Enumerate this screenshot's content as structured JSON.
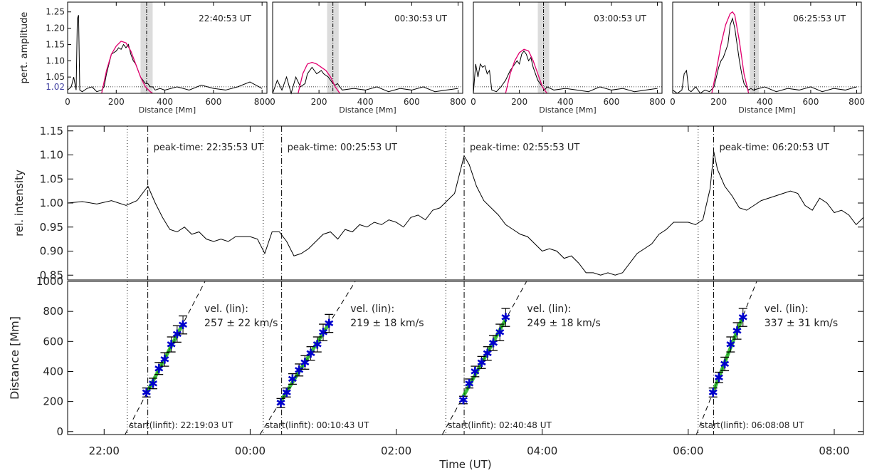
{
  "chart_data": [
    {
      "type": "line",
      "panel": "profile-1",
      "ylabel": "pert. amplitude",
      "xlabel": "Distance [Mm]",
      "xlim": [
        0,
        820
      ],
      "ylim": [
        1.0,
        1.28
      ],
      "xticks": [
        0,
        200,
        400,
        600,
        800
      ],
      "yticks": [
        1.05,
        1.1,
        1.15,
        1.2,
        1.25
      ],
      "threshold_label": "1.02",
      "threshold": 1.02,
      "timestamp": "22:40:53 UT",
      "front_position": 325,
      "front_band": [
        300,
        350
      ],
      "series": [
        {
          "color": "#000000",
          "x": [
            0,
            15,
            25,
            35,
            40,
            45,
            50,
            60,
            80,
            100,
            120,
            140,
            150,
            160,
            170,
            180,
            190,
            200,
            210,
            220,
            230,
            240,
            250,
            260,
            270,
            280,
            290,
            300,
            310,
            320,
            330,
            340,
            350,
            360,
            380,
            400,
            450,
            500,
            550,
            600,
            650,
            700,
            750,
            800
          ],
          "y": [
            1.01,
            1.02,
            1.05,
            1.01,
            1.23,
            1.24,
            1.01,
            1.005,
            1.015,
            1.02,
            1.005,
            1.01,
            1.02,
            1.06,
            1.09,
            1.12,
            1.125,
            1.13,
            1.14,
            1.135,
            1.15,
            1.14,
            1.15,
            1.12,
            1.1,
            1.09,
            1.07,
            1.05,
            1.04,
            1.03,
            1.03,
            1.02,
            1.02,
            1.01,
            1.015,
            1.01,
            1.02,
            1.01,
            1.025,
            1.015,
            1.01,
            1.02,
            1.035,
            1.015
          ]
        },
        {
          "color": "#e2006f",
          "x": [
            140,
            160,
            180,
            200,
            220,
            240,
            260,
            280,
            300,
            320,
            340,
            350
          ],
          "y": [
            1.0,
            1.07,
            1.12,
            1.145,
            1.16,
            1.155,
            1.13,
            1.09,
            1.05,
            1.02,
            1.005,
            1.0
          ]
        }
      ]
    },
    {
      "type": "line",
      "panel": "profile-2",
      "xlabel": "Distance [Mm]",
      "xlim": [
        0,
        820
      ],
      "ylim": [
        1.0,
        1.28
      ],
      "xticks": [
        0,
        200,
        400,
        600,
        800
      ],
      "threshold": 1.02,
      "timestamp": "00:30:53 UT",
      "front_position": 260,
      "front_band": [
        235,
        285
      ],
      "series": [
        {
          "color": "#000000",
          "x": [
            0,
            20,
            40,
            60,
            80,
            100,
            120,
            140,
            150,
            160,
            170,
            180,
            190,
            200,
            210,
            220,
            230,
            240,
            250,
            260,
            270,
            280,
            290,
            300,
            350,
            400,
            450,
            500,
            550,
            600,
            650,
            700,
            750,
            800
          ],
          "y": [
            1.0,
            1.04,
            1.01,
            1.05,
            1.0,
            1.05,
            1.02,
            1.03,
            1.06,
            1.07,
            1.08,
            1.07,
            1.06,
            1.065,
            1.07,
            1.06,
            1.055,
            1.05,
            1.04,
            1.03,
            1.025,
            1.03,
            1.02,
            1.01,
            1.015,
            1.01,
            1.02,
            1.005,
            1.015,
            1.01,
            1.02,
            1.005,
            1.01,
            1.015
          ]
        },
        {
          "color": "#e2006f",
          "x": [
            110,
            130,
            150,
            170,
            190,
            210,
            230,
            250,
            270,
            290
          ],
          "y": [
            1.0,
            1.06,
            1.09,
            1.095,
            1.09,
            1.08,
            1.07,
            1.05,
            1.02,
            1.0
          ]
        }
      ]
    },
    {
      "type": "line",
      "panel": "profile-3",
      "xlabel": "Distance [Mm]",
      "xlim": [
        0,
        820
      ],
      "ylim": [
        1.0,
        1.28
      ],
      "xticks": [
        0,
        200,
        400,
        600,
        800
      ],
      "threshold": 1.02,
      "timestamp": "03:00:53 UT",
      "front_position": 305,
      "front_band": [
        280,
        330
      ],
      "series": [
        {
          "color": "#000000",
          "x": [
            0,
            10,
            20,
            30,
            40,
            50,
            60,
            70,
            80,
            100,
            120,
            140,
            160,
            180,
            190,
            200,
            210,
            220,
            230,
            240,
            250,
            260,
            270,
            280,
            290,
            300,
            310,
            320,
            350,
            400,
            450,
            500,
            550,
            600,
            650,
            700,
            750,
            800
          ],
          "y": [
            1.0,
            1.09,
            1.05,
            1.09,
            1.08,
            1.085,
            1.06,
            1.07,
            1.01,
            1.005,
            1.02,
            1.04,
            1.07,
            1.09,
            1.1,
            1.09,
            1.12,
            1.13,
            1.12,
            1.1,
            1.11,
            1.08,
            1.06,
            1.04,
            1.03,
            1.02,
            1.01,
            1.02,
            1.01,
            1.015,
            1.01,
            1.005,
            1.02,
            1.01,
            1.015,
            1.005,
            1.01,
            1.015
          ]
        },
        {
          "color": "#e2006f",
          "x": [
            140,
            160,
            180,
            200,
            220,
            240,
            260,
            280,
            300,
            320
          ],
          "y": [
            1.0,
            1.06,
            1.1,
            1.125,
            1.135,
            1.13,
            1.1,
            1.06,
            1.02,
            1.0
          ]
        }
      ]
    },
    {
      "type": "line",
      "panel": "profile-4",
      "xlabel": "Distance [Mm]",
      "xlim": [
        0,
        820
      ],
      "ylim": [
        1.0,
        1.28
      ],
      "xticks": [
        0,
        200,
        400,
        600,
        800
      ],
      "threshold": 1.02,
      "timestamp": "06:25:53 UT",
      "front_position": 355,
      "front_band": [
        335,
        375
      ],
      "series": [
        {
          "color": "#000000",
          "x": [
            0,
            20,
            40,
            50,
            60,
            70,
            80,
            100,
            120,
            140,
            160,
            180,
            200,
            210,
            220,
            230,
            240,
            250,
            260,
            270,
            280,
            290,
            300,
            310,
            320,
            330,
            340,
            350,
            400,
            450,
            500,
            550,
            600,
            650,
            700,
            750,
            800
          ],
          "y": [
            1.01,
            1.0,
            1.01,
            1.06,
            1.07,
            1.01,
            1.005,
            1.02,
            1.0,
            1.01,
            1.005,
            1.02,
            1.08,
            1.1,
            1.11,
            1.13,
            1.15,
            1.21,
            1.23,
            1.2,
            1.15,
            1.1,
            1.06,
            1.03,
            1.02,
            1.01,
            1.015,
            1.01,
            1.02,
            1.005,
            1.015,
            1.01,
            1.02,
            1.005,
            1.015,
            1.01,
            1.02
          ]
        },
        {
          "color": "#e2006f",
          "x": [
            170,
            190,
            210,
            230,
            250,
            260,
            270,
            290,
            310,
            330
          ],
          "y": [
            1.0,
            1.07,
            1.15,
            1.21,
            1.245,
            1.25,
            1.24,
            1.16,
            1.06,
            1.0
          ]
        }
      ]
    },
    {
      "type": "line",
      "panel": "light-curve",
      "ylabel": "rel. intensity",
      "xlim": [
        -2.5,
        8.4
      ],
      "ylim": [
        0.84,
        1.16
      ],
      "yticks": [
        0.85,
        0.9,
        0.95,
        1.0,
        1.05,
        1.1,
        1.15
      ],
      "events": [
        {
          "start": -1.683,
          "peak": -1.402,
          "label": "peak-time: 22:35:53 UT"
        },
        {
          "start": 0.179,
          "peak": 0.431,
          "label": "peak-time: 00:25:53 UT"
        },
        {
          "start": 2.68,
          "peak": 2.931,
          "label": "peak-time: 02:55:53 UT"
        },
        {
          "start": 6.136,
          "peak": 6.348,
          "label": "peak-time: 06:20:53 UT"
        }
      ],
      "series": [
        {
          "color": "#000000",
          "x": [
            -2.5,
            -2.3,
            -2.1,
            -1.9,
            -1.7,
            -1.55,
            -1.45,
            -1.4,
            -1.3,
            -1.2,
            -1.1,
            -1.0,
            -0.9,
            -0.8,
            -0.7,
            -0.6,
            -0.5,
            -0.4,
            -0.3,
            -0.2,
            -0.1,
            0.0,
            0.1,
            0.2,
            0.3,
            0.4,
            0.5,
            0.6,
            0.7,
            0.8,
            0.9,
            1.0,
            1.1,
            1.2,
            1.3,
            1.4,
            1.5,
            1.6,
            1.7,
            1.8,
            1.9,
            2.0,
            2.1,
            2.2,
            2.3,
            2.4,
            2.5,
            2.6,
            2.7,
            2.8,
            2.9,
            2.93,
            3.0,
            3.1,
            3.2,
            3.3,
            3.4,
            3.5,
            3.6,
            3.7,
            3.8,
            3.9,
            4.0,
            4.1,
            4.2,
            4.3,
            4.4,
            4.5,
            4.6,
            4.7,
            4.8,
            4.9,
            5.0,
            5.1,
            5.2,
            5.3,
            5.4,
            5.5,
            5.6,
            5.7,
            5.8,
            5.9,
            6.0,
            6.1,
            6.2,
            6.3,
            6.35,
            6.4,
            6.5,
            6.6,
            6.7,
            6.8,
            6.9,
            7.0,
            7.1,
            7.2,
            7.3,
            7.4,
            7.5,
            7.6,
            7.7,
            7.8,
            7.9,
            8.0,
            8.1,
            8.2,
            8.3,
            8.4
          ],
          "y": [
            1.0,
            1.003,
            0.998,
            1.005,
            0.995,
            1.005,
            1.025,
            1.035,
            1.0,
            0.97,
            0.945,
            0.94,
            0.95,
            0.935,
            0.94,
            0.925,
            0.92,
            0.925,
            0.92,
            0.93,
            0.93,
            0.93,
            0.925,
            0.895,
            0.94,
            0.94,
            0.92,
            0.89,
            0.895,
            0.905,
            0.92,
            0.935,
            0.94,
            0.925,
            0.945,
            0.94,
            0.955,
            0.95,
            0.96,
            0.955,
            0.965,
            0.96,
            0.95,
            0.97,
            0.975,
            0.965,
            0.985,
            0.99,
            1.005,
            1.02,
            1.08,
            1.098,
            1.08,
            1.035,
            1.005,
            0.99,
            0.975,
            0.955,
            0.945,
            0.935,
            0.93,
            0.915,
            0.9,
            0.905,
            0.9,
            0.885,
            0.89,
            0.875,
            0.855,
            0.855,
            0.85,
            0.855,
            0.85,
            0.855,
            0.875,
            0.895,
            0.905,
            0.915,
            0.935,
            0.945,
            0.96,
            0.96,
            0.96,
            0.955,
            0.965,
            1.03,
            1.107,
            1.07,
            1.035,
            1.015,
            0.99,
            0.985,
            0.995,
            1.005,
            1.01,
            1.015,
            1.02,
            1.025,
            1.02,
            0.995,
            0.985,
            1.01,
            1.0,
            0.98,
            0.985,
            0.975,
            0.955,
            0.97
          ]
        }
      ]
    },
    {
      "type": "scatter",
      "panel": "distance-time",
      "ylabel": "Distance [Mm]",
      "xlabel": "Time (UT)",
      "xlim": [
        -2.5,
        8.4
      ],
      "ylim": [
        -20,
        1000
      ],
      "xtick_values": [
        -2,
        0,
        2,
        4,
        6,
        8
      ],
      "xtick_labels": [
        "22:00",
        "00:00",
        "02:00",
        "04:00",
        "06:00",
        "08:00"
      ],
      "yticks": [
        0,
        200,
        400,
        600,
        800,
        1000
      ],
      "fits": [
        {
          "vel_label": "vel. (lin):",
          "vel_value": "257 ± 22 km/s",
          "start_label": "start(linfit): 22:19:03 UT",
          "start": -1.683,
          "x": [
            -1.42,
            -1.33,
            -1.25,
            -1.17,
            -1.08,
            -1.0,
            -0.92
          ],
          "y": [
            260,
            320,
            420,
            480,
            580,
            650,
            710
          ],
          "err": [
            30,
            35,
            40,
            45,
            50,
            55,
            60
          ]
        },
        {
          "vel_label": "vel. (lin):",
          "vel_value": "219 ± 18 km/s",
          "start_label": "start(linfit): 00:10:43 UT",
          "start": 0.179,
          "x": [
            0.42,
            0.5,
            0.58,
            0.67,
            0.75,
            0.83,
            0.92,
            1.0,
            1.08
          ],
          "y": [
            190,
            260,
            350,
            410,
            460,
            520,
            580,
            660,
            720
          ],
          "err": [
            30,
            30,
            35,
            40,
            45,
            45,
            50,
            55,
            60
          ]
        },
        {
          "vel_label": "vel. (lin):",
          "vel_value": "249 ± 18 km/s",
          "start_label": "start(linfit): 02:40:48 UT",
          "start": 2.68,
          "x": [
            2.92,
            3.0,
            3.08,
            3.17,
            3.25,
            3.33,
            3.42,
            3.5
          ],
          "y": [
            210,
            320,
            400,
            460,
            520,
            590,
            660,
            760
          ],
          "err": [
            25,
            30,
            35,
            40,
            45,
            50,
            55,
            60
          ]
        },
        {
          "vel_label": "vel. (lin):",
          "vel_value": "337 ± 31 km/s",
          "start_label": "start(linfit): 06:08:08 UT",
          "start": 6.136,
          "x": [
            6.34,
            6.42,
            6.5,
            6.58,
            6.67,
            6.75
          ],
          "y": [
            260,
            360,
            450,
            580,
            670,
            760
          ],
          "err": [
            30,
            35,
            45,
            50,
            55,
            60
          ]
        }
      ],
      "marker_color": "#0000cc",
      "fit_color": "#00aa00"
    }
  ]
}
